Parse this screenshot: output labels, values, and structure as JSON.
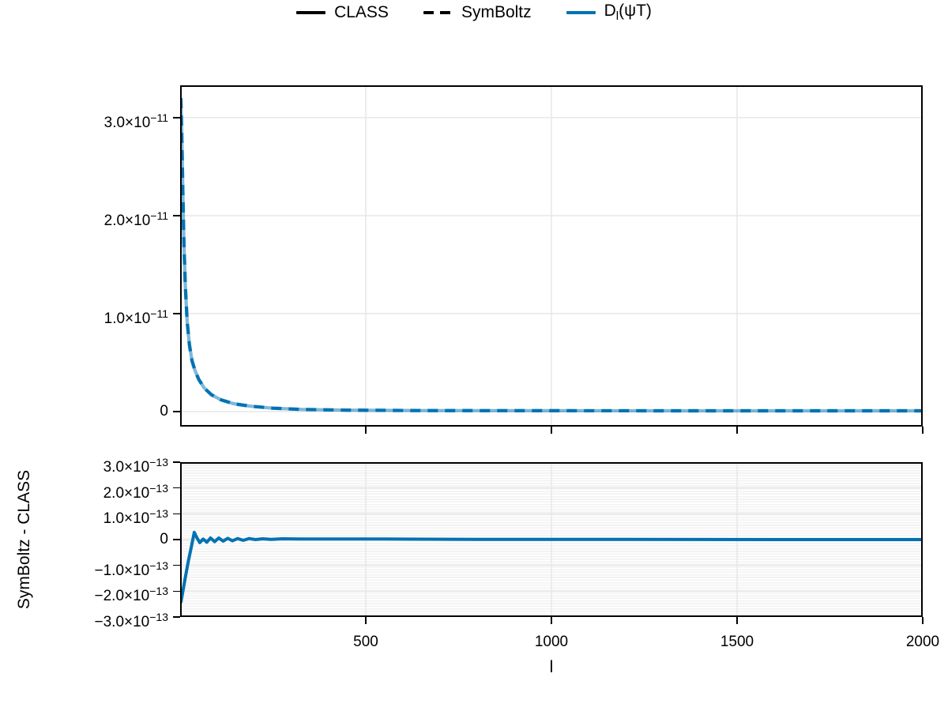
{
  "colors": {
    "accent_blue": "#0072B2",
    "line_black": "#000000",
    "grid_major": "#e7e7e7",
    "grid_minor_stripe": "#f2f2f2",
    "spine": "#000000"
  },
  "legend": {
    "items": [
      {
        "label": "CLASS",
        "line": "solid",
        "color": "#000000"
      },
      {
        "label": "SymBoltz",
        "line": "dashed",
        "color": "#000000"
      },
      {
        "label_pre": "D",
        "label_sub": "l",
        "label_post": "(ψT)",
        "line": "solid",
        "color": "#0072B2"
      }
    ]
  },
  "axes": {
    "xlabel": "l",
    "ylabel_bottom": "SymBoltz - CLASS"
  },
  "chart_data": {
    "type": "line",
    "title": "",
    "xlabel": "l",
    "legend_position": "top-center",
    "panels": [
      {
        "id": "spectrum",
        "description": "Dl(psiT) power spectrum: CLASS (solid) and SymBoltz (dashed) overlapping, values in units of 1e-11",
        "xlim": [
          0,
          2000
        ],
        "ylim": [
          -0.153,
          3.33
        ],
        "value_unit": "1e-11",
        "grid": true,
        "yticks": [
          {
            "v": 3.0,
            "base": "3.0×10",
            "sup": "−11"
          },
          {
            "v": 2.0,
            "base": "2.0×10",
            "sup": "−11"
          },
          {
            "v": 1.0,
            "base": "1.0×10",
            "sup": "−11"
          },
          {
            "v": 0.0,
            "base": "0",
            "sup": ""
          }
        ],
        "xticks": [
          {
            "v": 500,
            "label": ""
          },
          {
            "v": 1000,
            "label": ""
          },
          {
            "v": 1500,
            "label": ""
          },
          {
            "v": 2000,
            "label": ""
          }
        ],
        "x": [
          2,
          4,
          7,
          10,
          14,
          19,
          25,
          32,
          40,
          50,
          65,
          85,
          110,
          145,
          190,
          250,
          330,
          450,
          650,
          1000,
          1400,
          2000
        ],
        "y": [
          3.2,
          2.9,
          2.3,
          1.75,
          1.28,
          0.92,
          0.68,
          0.52,
          0.42,
          0.33,
          0.24,
          0.17,
          0.12,
          0.08,
          0.055,
          0.035,
          0.022,
          0.015,
          0.011,
          0.009,
          0.008,
          0.008
        ],
        "series": [
          {
            "name": "CLASS",
            "style": "solid",
            "color": "#0072B2",
            "opacity": 0.5,
            "width": 4.2,
            "dash": ""
          },
          {
            "name": "SymBoltz",
            "style": "dashed",
            "color": "#0072B2",
            "opacity": 1,
            "width": 4.2,
            "dash": "13 9"
          }
        ]
      },
      {
        "id": "residual",
        "description": "Residual SymBoltz - CLASS, values in units of 1e-13",
        "xlim": [
          0,
          2000
        ],
        "ylim": [
          -3.0,
          3.0
        ],
        "value_unit": "1e-13",
        "grid": true,
        "yticks": [
          {
            "v": 3.0,
            "base": "3.0×10",
            "sup": "−13"
          },
          {
            "v": 2.0,
            "base": "2.0×10",
            "sup": "−13"
          },
          {
            "v": 1.0,
            "base": "1.0×10",
            "sup": "−13"
          },
          {
            "v": 0.0,
            "base": "0",
            "sup": ""
          },
          {
            "v": -1.0,
            "base": "−1.0×10",
            "sup": "−13"
          },
          {
            "v": -2.0,
            "base": "−2.0×10",
            "sup": "−13"
          },
          {
            "v": -3.0,
            "base": "−3.0×10",
            "sup": "−13"
          }
        ],
        "xticks": [
          {
            "v": 500,
            "label": "500"
          },
          {
            "v": 1000,
            "label": "1000"
          },
          {
            "v": 1500,
            "label": "1500"
          },
          {
            "v": 2000,
            "label": "2000"
          }
        ],
        "x": [
          2,
          8,
          15,
          22,
          30,
          38,
          46,
          53,
          62,
          72,
          82,
          93,
          104,
          116,
          128,
          141,
          155,
          170,
          186,
          203,
          222,
          245,
          275,
          320,
          400,
          550,
          800,
          1200,
          1600,
          2000
        ],
        "y": [
          -2.45,
          -1.95,
          -1.4,
          -0.85,
          -0.3,
          0.28,
          0.05,
          -0.12,
          0.02,
          -0.1,
          0.06,
          -0.08,
          0.06,
          -0.06,
          0.05,
          -0.05,
          0.04,
          -0.03,
          0.04,
          0.0,
          0.03,
          0.01,
          0.03,
          0.02,
          0.02,
          0.02,
          0.01,
          0.01,
          0.0,
          0.0
        ],
        "series": [
          {
            "name": "SymBoltz - CLASS",
            "style": "solid",
            "color": "#0072B2",
            "opacity": 1,
            "width": 4,
            "dash": ""
          }
        ]
      }
    ]
  }
}
